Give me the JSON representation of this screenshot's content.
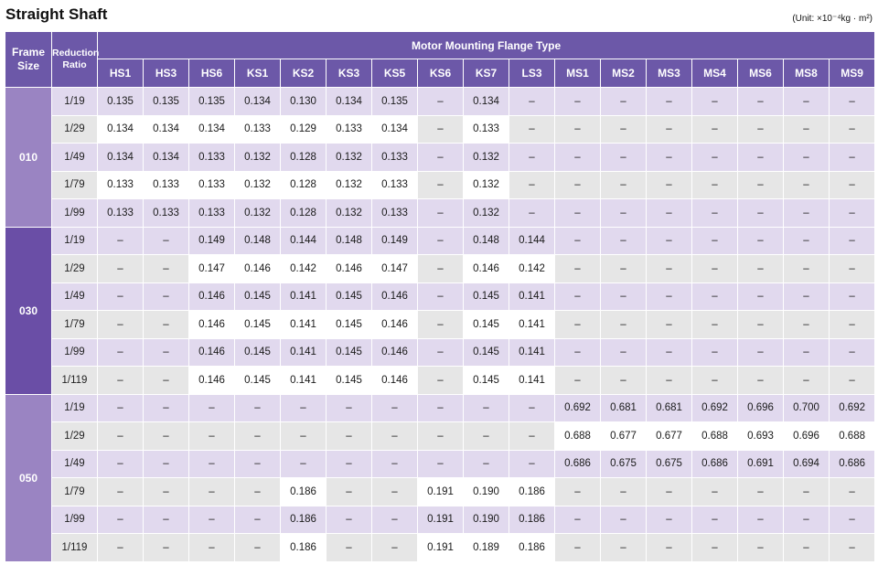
{
  "title": "Straight Shaft",
  "unit": "(Unit: ×10⁻⁴kg · m²)",
  "header": {
    "frame_size": "Frame Size",
    "reduction_ratio": "Reduction Ratio",
    "group": "Motor Mounting Flange Type",
    "columns": [
      "HS1",
      "HS3",
      "HS6",
      "KS1",
      "KS2",
      "KS3",
      "KS5",
      "KS6",
      "KS7",
      "LS3",
      "MS1",
      "MS2",
      "MS3",
      "MS4",
      "MS6",
      "MS8",
      "MS9"
    ]
  },
  "frames": [
    {
      "frame": "010",
      "rows": [
        {
          "ratio": "1/19",
          "values": [
            "0.135",
            "0.135",
            "0.135",
            "0.134",
            "0.130",
            "0.134",
            "0.135",
            "–",
            "0.134",
            "–",
            "–",
            "–",
            "–",
            "–",
            "–",
            "–",
            "–"
          ]
        },
        {
          "ratio": "1/29",
          "values": [
            "0.134",
            "0.134",
            "0.134",
            "0.133",
            "0.129",
            "0.133",
            "0.134",
            "–",
            "0.133",
            "–",
            "–",
            "–",
            "–",
            "–",
            "–",
            "–",
            "–"
          ]
        },
        {
          "ratio": "1/49",
          "values": [
            "0.134",
            "0.134",
            "0.133",
            "0.132",
            "0.128",
            "0.132",
            "0.133",
            "–",
            "0.132",
            "–",
            "–",
            "–",
            "–",
            "–",
            "–",
            "–",
            "–"
          ]
        },
        {
          "ratio": "1/79",
          "values": [
            "0.133",
            "0.133",
            "0.133",
            "0.132",
            "0.128",
            "0.132",
            "0.133",
            "–",
            "0.132",
            "–",
            "–",
            "–",
            "–",
            "–",
            "–",
            "–",
            "–"
          ]
        },
        {
          "ratio": "1/99",
          "values": [
            "0.133",
            "0.133",
            "0.133",
            "0.132",
            "0.128",
            "0.132",
            "0.133",
            "–",
            "0.132",
            "–",
            "–",
            "–",
            "–",
            "–",
            "–",
            "–",
            "–"
          ]
        }
      ]
    },
    {
      "frame": "030",
      "rows": [
        {
          "ratio": "1/19",
          "values": [
            "–",
            "–",
            "0.149",
            "0.148",
            "0.144",
            "0.148",
            "0.149",
            "–",
            "0.148",
            "0.144",
            "–",
            "–",
            "–",
            "–",
            "–",
            "–",
            "–"
          ]
        },
        {
          "ratio": "1/29",
          "values": [
            "–",
            "–",
            "0.147",
            "0.146",
            "0.142",
            "0.146",
            "0.147",
            "–",
            "0.146",
            "0.142",
            "–",
            "–",
            "–",
            "–",
            "–",
            "–",
            "–"
          ]
        },
        {
          "ratio": "1/49",
          "values": [
            "–",
            "–",
            "0.146",
            "0.145",
            "0.141",
            "0.145",
            "0.146",
            "–",
            "0.145",
            "0.141",
            "–",
            "–",
            "–",
            "–",
            "–",
            "–",
            "–"
          ]
        },
        {
          "ratio": "1/79",
          "values": [
            "–",
            "–",
            "0.146",
            "0.145",
            "0.141",
            "0.145",
            "0.146",
            "–",
            "0.145",
            "0.141",
            "–",
            "–",
            "–",
            "–",
            "–",
            "–",
            "–"
          ]
        },
        {
          "ratio": "1/99",
          "values": [
            "–",
            "–",
            "0.146",
            "0.145",
            "0.141",
            "0.145",
            "0.146",
            "–",
            "0.145",
            "0.141",
            "–",
            "–",
            "–",
            "–",
            "–",
            "–",
            "–"
          ]
        },
        {
          "ratio": "1/119",
          "values": [
            "–",
            "–",
            "0.146",
            "0.145",
            "0.141",
            "0.145",
            "0.146",
            "–",
            "0.145",
            "0.141",
            "–",
            "–",
            "–",
            "–",
            "–",
            "–",
            "–"
          ]
        }
      ]
    },
    {
      "frame": "050",
      "rows": [
        {
          "ratio": "1/19",
          "values": [
            "–",
            "–",
            "–",
            "–",
            "–",
            "–",
            "–",
            "–",
            "–",
            "–",
            "0.692",
            "0.681",
            "0.681",
            "0.692",
            "0.696",
            "0.700",
            "0.692"
          ]
        },
        {
          "ratio": "1/29",
          "values": [
            "–",
            "–",
            "–",
            "–",
            "–",
            "–",
            "–",
            "–",
            "–",
            "–",
            "0.688",
            "0.677",
            "0.677",
            "0.688",
            "0.693",
            "0.696",
            "0.688"
          ]
        },
        {
          "ratio": "1/49",
          "values": [
            "–",
            "–",
            "–",
            "–",
            "–",
            "–",
            "–",
            "–",
            "–",
            "–",
            "0.686",
            "0.675",
            "0.675",
            "0.686",
            "0.691",
            "0.694",
            "0.686"
          ]
        },
        {
          "ratio": "1/79",
          "values": [
            "–",
            "–",
            "–",
            "–",
            "0.186",
            "–",
            "–",
            "0.191",
            "0.190",
            "0.186",
            "–",
            "–",
            "–",
            "–",
            "–",
            "–",
            "–"
          ]
        },
        {
          "ratio": "1/99",
          "values": [
            "–",
            "–",
            "–",
            "–",
            "0.186",
            "–",
            "–",
            "0.191",
            "0.190",
            "0.186",
            "–",
            "–",
            "–",
            "–",
            "–",
            "–",
            "–"
          ]
        },
        {
          "ratio": "1/119",
          "values": [
            "–",
            "–",
            "–",
            "–",
            "0.186",
            "–",
            "–",
            "0.191",
            "0.189",
            "0.186",
            "–",
            "–",
            "–",
            "–",
            "–",
            "–",
            "–"
          ]
        }
      ]
    }
  ]
}
